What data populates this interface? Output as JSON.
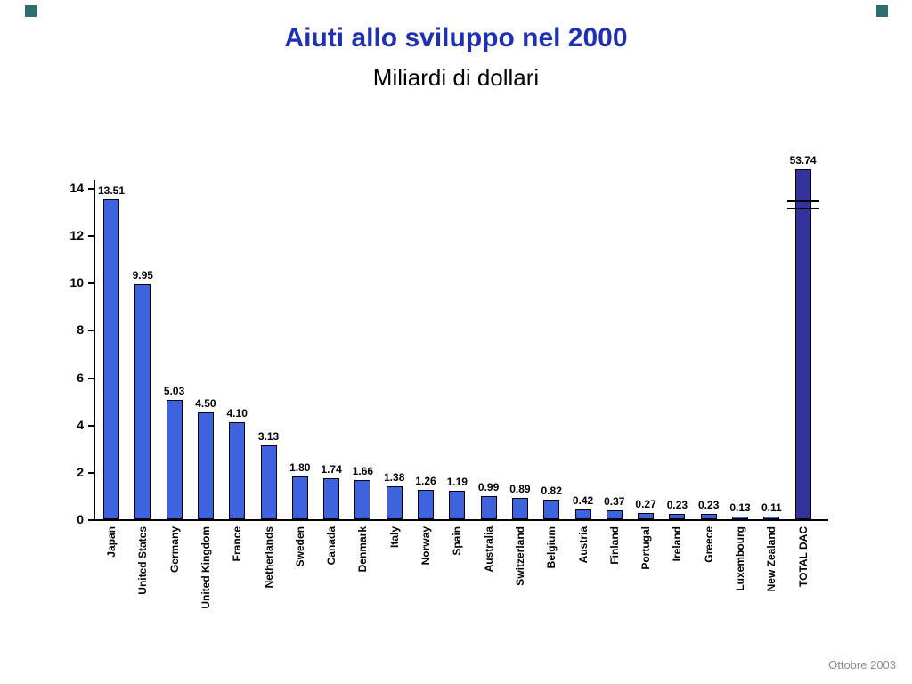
{
  "slide": {
    "title": "Aiuti allo sviluppo nel 2000",
    "subtitle": "Miliardi di dollari",
    "footer": "Ottobre 2003",
    "title_color": "#1f31b0",
    "footer_color": "#8c8c8c",
    "accent_color": "#2e6e6e"
  },
  "chart_data": {
    "type": "bar",
    "title": "Aiuti allo sviluppo nel 2000",
    "subtitle": "Miliardi di dollari",
    "xlabel": "",
    "ylabel": "",
    "ylim": [
      0,
      14
    ],
    "yticks": [
      0,
      2,
      4,
      6,
      8,
      10,
      12,
      14
    ],
    "grid": false,
    "legend": false,
    "bar_color": "#3e63df",
    "bar_border": "#000000",
    "total_bar_color": "#33339b",
    "axis_break_on_last_bar": true,
    "categories": [
      "Japan",
      "United States",
      "Germany",
      "United Kingdom",
      "France",
      "Netherlands",
      "Sweden",
      "Canada",
      "Denmark",
      "Italy",
      "Norway",
      "Spain",
      "Australia",
      "Switzerland",
      "Belgium",
      "Austria",
      "Finland",
      "Portugal",
      "Ireland",
      "Greece",
      "Luxembourg",
      "New Zealand",
      "TOTAL DAC"
    ],
    "values": [
      13.51,
      9.95,
      5.03,
      4.5,
      4.1,
      3.13,
      1.8,
      1.74,
      1.66,
      1.38,
      1.26,
      1.19,
      0.99,
      0.89,
      0.82,
      0.42,
      0.37,
      0.27,
      0.23,
      0.23,
      0.13,
      0.11,
      53.74
    ],
    "value_labels": [
      "13.51",
      "9.95",
      "5.03",
      "4.50",
      "4.10",
      "3.13",
      "1.80",
      "1.74",
      "1.66",
      "1.38",
      "1.26",
      "1.19",
      "0.99",
      "0.89",
      "0.82",
      "0.42",
      "0.37",
      "0.27",
      "0.23",
      "0.23",
      "0.13",
      "0.11",
      "53.74"
    ]
  }
}
